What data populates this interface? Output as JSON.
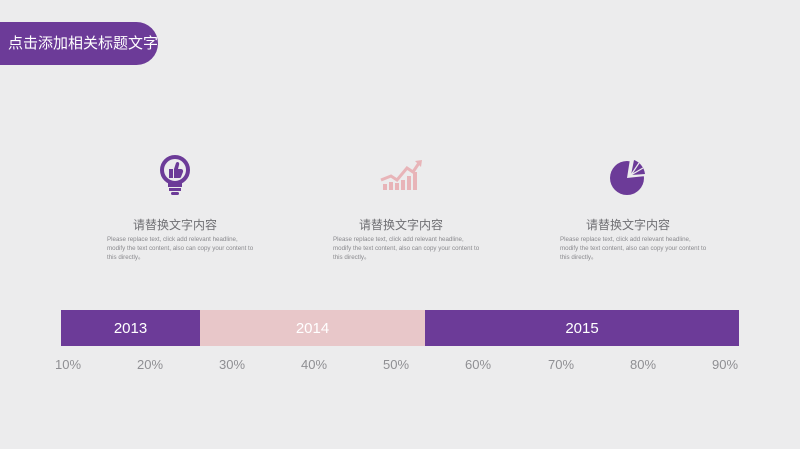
{
  "slide": {
    "title": "点击添加相关标题文字"
  },
  "colors": {
    "purple": "#6c3b98",
    "pink": "#e8c7c9",
    "background": "#ececed"
  },
  "cards": [
    {
      "icon": "lightbulb-thumbs-up-icon",
      "heading": "请替换文字内容",
      "body": "Please replace text, click add relevant headline, modify the text content, also can copy your content to this directly。"
    },
    {
      "icon": "rising-chart-icon",
      "heading": "请替换文字内容",
      "body": "Please replace text, click add relevant headline, modify the text content, also can copy your content to this directly。"
    },
    {
      "icon": "pie-chart-icon",
      "heading": "请替换文字内容",
      "body": "Please replace text, click add relevant headline, modify the text content, also can copy your content to this directly。"
    }
  ],
  "timeline": {
    "segments": [
      {
        "label": "2013",
        "color": "#6c3b98"
      },
      {
        "label": "2014",
        "color": "#e8c7c9"
      },
      {
        "label": "2015",
        "color": "#6c3b98"
      }
    ],
    "ticks": [
      "10%",
      "20%",
      "30%",
      "40%",
      "50%",
      "60%",
      "70%",
      "80%",
      "90%"
    ]
  }
}
